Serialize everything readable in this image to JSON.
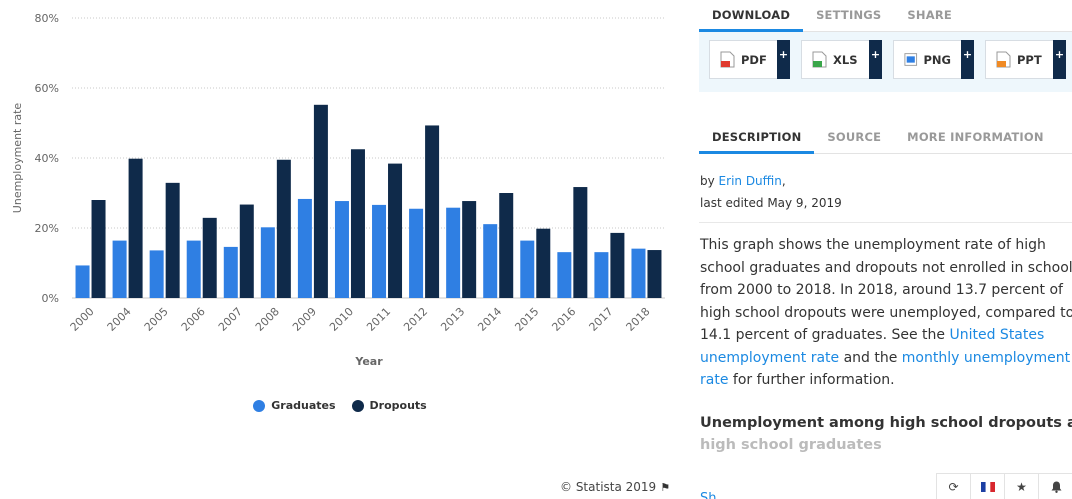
{
  "chart_data": {
    "type": "bar",
    "categories": [
      "2000",
      "2004",
      "2005",
      "2006",
      "2007",
      "2008",
      "2009",
      "2010",
      "2011",
      "2012",
      "2013",
      "2014",
      "2015",
      "2016",
      "2017",
      "2018"
    ],
    "series": [
      {
        "name": "Graduates",
        "color": "#2f7fe3",
        "values": [
          9.3,
          16.4,
          13.6,
          16.4,
          14.6,
          20.2,
          28.3,
          27.7,
          26.6,
          25.5,
          25.8,
          21.1,
          16.4,
          13.1,
          13.1,
          14.1
        ]
      },
      {
        "name": "Dropouts",
        "color": "#0f2a4a",
        "values": [
          28.0,
          39.8,
          32.9,
          22.9,
          26.7,
          39.5,
          55.2,
          42.5,
          38.4,
          49.3,
          27.7,
          30.0,
          19.8,
          31.7,
          18.6,
          13.7
        ]
      }
    ],
    "y_ticks": [
      "0%",
      "20%",
      "40%",
      "60%",
      "80%"
    ],
    "ylim": [
      0,
      80
    ],
    "xlabel": "Year",
    "ylabel": "Unemployment rate",
    "grid": "horizontal dotted",
    "legend_position": "bottom"
  },
  "credit": "© Statista 2019",
  "panel": {
    "download_tabs": [
      "DOWNLOAD",
      "SETTINGS",
      "SHARE"
    ],
    "download_buttons": [
      {
        "label": "PDF",
        "plus": "+",
        "color": "#e03a2e"
      },
      {
        "label": "XLS",
        "plus": "+",
        "color": "#3aa64a"
      },
      {
        "label": "PNG",
        "plus": "+",
        "color": "#2f7fe3"
      },
      {
        "label": "PPT",
        "plus": "+",
        "color": "#f08a24"
      }
    ],
    "desc_tabs": [
      "DESCRIPTION",
      "SOURCE",
      "MORE INFORMATION"
    ],
    "byline_prefix": "by ",
    "author": "Erin Duffin",
    "byline_suffix": ",",
    "last_edited": "last edited May 9, 2019",
    "description": {
      "line1": "This graph shows the unemployment rate of high",
      "line2": "school graduates and dropouts not enrolled in school",
      "line3": "from 2000 to 2018. In 2018, around 13.7 percent of",
      "line4": "high school dropouts were unemployed, compared to",
      "line5_text": "14.1 percent of graduates. See the ",
      "line5_link": "United States",
      "line6_link": "unemployment rate",
      "line6_mid": " and the ",
      "line6_link2": "monthly unemployment",
      "line7_link": "rate",
      "line7_text": " for further information."
    },
    "subtitle_line1": "Unemployment among high school dropouts and",
    "subtitle_line2": "high school graduates",
    "cut_link": "Sh",
    "bottom_icons": [
      "history-icon",
      "french-flag-icon",
      "star-icon",
      "bell-icon"
    ]
  }
}
